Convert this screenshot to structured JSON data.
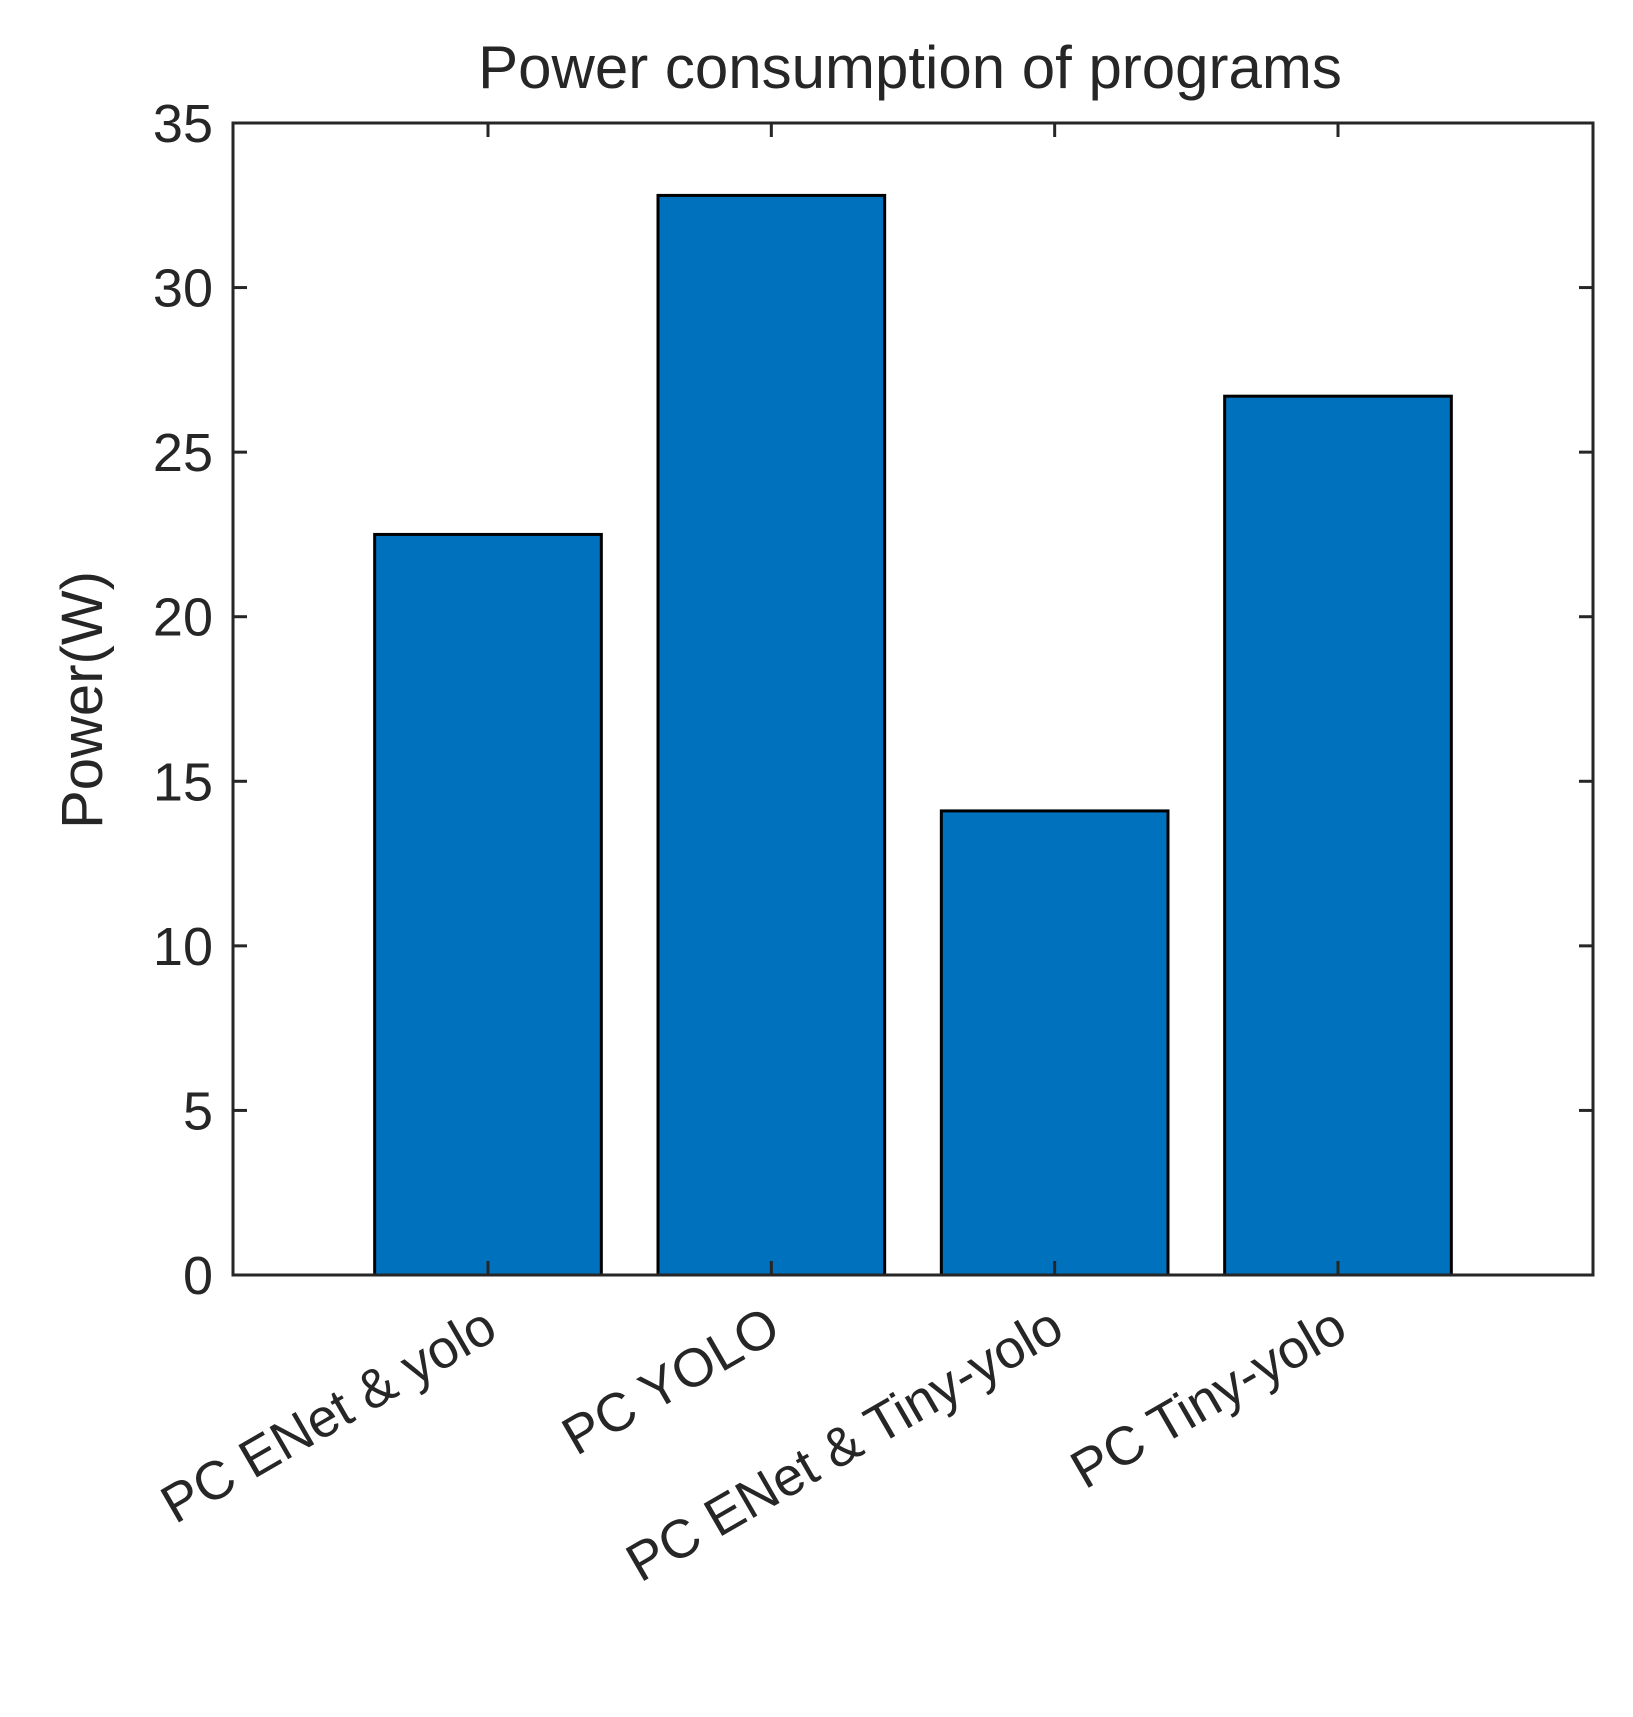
{
  "chart_data": {
    "type": "bar",
    "title": "Power consumption of programs",
    "xlabel": "",
    "ylabel": "Power(W)",
    "categories": [
      "PC ENet & yolo",
      "PC YOLO",
      "PC ENet & Tiny-yolo",
      "PC Tiny-yolo"
    ],
    "values": [
      22.5,
      32.8,
      14.1,
      26.7
    ],
    "ylim": [
      0,
      35
    ],
    "yticks": [
      0,
      5,
      10,
      15,
      20,
      25,
      30,
      35
    ],
    "xlim": [
      0.1,
      4.9
    ],
    "bar_width": 0.8,
    "grid": false,
    "legend": "none",
    "colors": {
      "bar_fill": "#0072BD",
      "bar_edge": "#000000",
      "axis": "#262626",
      "text": "#262626",
      "background": "#ffffff"
    }
  }
}
